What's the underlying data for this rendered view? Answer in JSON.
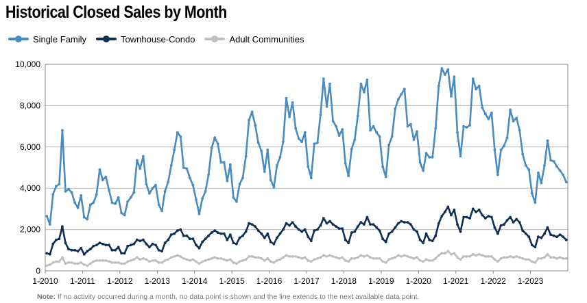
{
  "chart_data": {
    "type": "line",
    "title": "Historical Closed Sales by Month",
    "xlabel": "",
    "ylabel": "",
    "ylim": [
      0,
      10000
    ],
    "yticks": [
      0,
      2000,
      4000,
      6000,
      8000,
      10000
    ],
    "ytick_labels": [
      "0",
      "2,000",
      "4,000",
      "6,000",
      "8,000",
      "10,000"
    ],
    "x_start": "2010-01",
    "xticks": [
      "1-2010",
      "1-2011",
      "1-2012",
      "1-2013",
      "1-2014",
      "1-2015",
      "1-2016",
      "1-2017",
      "1-2018",
      "1-2019",
      "1-2020",
      "1-2021",
      "1-2022",
      "1-2023"
    ],
    "grid": true,
    "legend_position": "top-left",
    "series": [
      {
        "name": "Single Family",
        "color": "#4a8cbf",
        "values": [
          2650,
          2250,
          3700,
          4100,
          4200,
          6800,
          3850,
          3950,
          3800,
          3300,
          3050,
          3650,
          2600,
          2500,
          3200,
          3300,
          3700,
          4900,
          4400,
          4550,
          3900,
          3300,
          3250,
          3550,
          2800,
          2700,
          3350,
          3550,
          3800,
          5350,
          4950,
          5550,
          4200,
          3750,
          4000,
          4150,
          3200,
          2900,
          3850,
          4300,
          5100,
          5850,
          6700,
          6500,
          5000,
          4950,
          4500,
          4150,
          3450,
          2750,
          3500,
          3850,
          4650,
          5950,
          6450,
          6150,
          5250,
          5250,
          4350,
          5150,
          3550,
          3350,
          4200,
          4500,
          5550,
          7300,
          7700,
          7050,
          6200,
          5800,
          4800,
          5850,
          4400,
          4050,
          5100,
          5500,
          6250,
          8350,
          7450,
          8150,
          6900,
          6400,
          6250,
          6700,
          5050,
          4500,
          6150,
          6200,
          7550,
          9300,
          7950,
          9050,
          7250,
          7000,
          6550,
          6850,
          5200,
          4600,
          5900,
          6350,
          7500,
          9050,
          8650,
          9250,
          6800,
          7000,
          6700,
          6500,
          5050,
          4550,
          6100,
          6500,
          7850,
          8300,
          8550,
          8800,
          7000,
          7100,
          6350,
          6750,
          5250,
          4850,
          5700,
          5500,
          5500,
          6900,
          8950,
          9800,
          9500,
          9750,
          8450,
          9400,
          6700,
          5550,
          7000,
          6950,
          7050,
          9300,
          8800,
          8950,
          7900,
          7600,
          7350,
          7650,
          5850,
          4650,
          5850,
          6050,
          6450,
          7800,
          7250,
          7400,
          6800,
          5650,
          5100,
          4900,
          3750,
          3300,
          4750,
          4250,
          5100,
          6300,
          5350,
          5300,
          5050,
          4850,
          4650,
          4300
        ]
      },
      {
        "name": "Townhouse-Condo",
        "color": "#0f2f57",
        "values": [
          850,
          800,
          1300,
          1500,
          1550,
          2150,
          1350,
          1050,
          1000,
          1000,
          950,
          1100,
          800,
          950,
          1050,
          1200,
          1250,
          1350,
          1300,
          1250,
          1250,
          1000,
          1000,
          1150,
          850,
          850,
          1200,
          1250,
          1300,
          1500,
          1450,
          1500,
          1300,
          1150,
          1300,
          1250,
          1000,
          950,
          1350,
          1500,
          1750,
          1800,
          1950,
          2000,
          1700,
          1700,
          1550,
          1550,
          1250,
          1100,
          1400,
          1550,
          1700,
          1850,
          1950,
          1850,
          1800,
          1800,
          1500,
          1750,
          1350,
          1300,
          1600,
          1700,
          1900,
          2300,
          2250,
          2150,
          1950,
          1800,
          1600,
          1800,
          1400,
          1300,
          1600,
          1800,
          2000,
          2300,
          2200,
          2350,
          2150,
          2000,
          1900,
          2000,
          1650,
          1450,
          1950,
          2000,
          2200,
          2550,
          2300,
          2400,
          2250,
          2150,
          2050,
          2050,
          1500,
          1350,
          1850,
          1900,
          2150,
          2350,
          2250,
          2600,
          2250,
          2250,
          2100,
          1950,
          1550,
          1400,
          1800,
          1900,
          2100,
          2300,
          2400,
          2350,
          2350,
          2250,
          2000,
          1900,
          1500,
          1350,
          1800,
          1500,
          1450,
          1700,
          2300,
          2650,
          2850,
          3100,
          2700,
          2950,
          2250,
          1900,
          2600,
          2600,
          2550,
          3000,
          2850,
          2950,
          2700,
          2550,
          2650,
          2600,
          2100,
          1800,
          2200,
          2250,
          2450,
          2600,
          2350,
          2500,
          2350,
          1950,
          1800,
          1650,
          1250,
          1150,
          1650,
          1600,
          1800,
          2100,
          1750,
          1700,
          1650,
          1750,
          1650,
          1500
        ]
      },
      {
        "name": "Adult Communities",
        "color": "#bfbfbf",
        "values": [
          250,
          300,
          400,
          450,
          450,
          650,
          350,
          400,
          400,
          350,
          350,
          400,
          300,
          250,
          350,
          450,
          500,
          500,
          500,
          500,
          450,
          400,
          400,
          400,
          350,
          350,
          450,
          500,
          550,
          650,
          550,
          600,
          550,
          450,
          500,
          500,
          400,
          400,
          500,
          550,
          650,
          700,
          750,
          700,
          600,
          550,
          500,
          550,
          450,
          350,
          450,
          500,
          550,
          600,
          650,
          600,
          600,
          550,
          500,
          550,
          400,
          350,
          450,
          500,
          550,
          700,
          700,
          650,
          650,
          600,
          500,
          600,
          450,
          400,
          500,
          550,
          650,
          750,
          700,
          700,
          700,
          650,
          600,
          650,
          500,
          450,
          550,
          600,
          650,
          750,
          700,
          750,
          700,
          650,
          600,
          650,
          500,
          450,
          600,
          600,
          650,
          750,
          700,
          750,
          650,
          600,
          600,
          600,
          450,
          400,
          550,
          600,
          650,
          750,
          700,
          750,
          700,
          650,
          600,
          650,
          500,
          450,
          550,
          500,
          500,
          600,
          750,
          850,
          850,
          950,
          800,
          850,
          650,
          550,
          700,
          700,
          700,
          800,
          750,
          800,
          750,
          700,
          700,
          700,
          550,
          450,
          600,
          650,
          650,
          700,
          650,
          700,
          650,
          600,
          550,
          550,
          450,
          400,
          600,
          600,
          650,
          800,
          650,
          650,
          600,
          650,
          600,
          600
        ]
      }
    ]
  },
  "note": {
    "label": "Note:",
    "text": " If no activity occurred during a month, no data point is shown and the line extends to the next available data point."
  }
}
